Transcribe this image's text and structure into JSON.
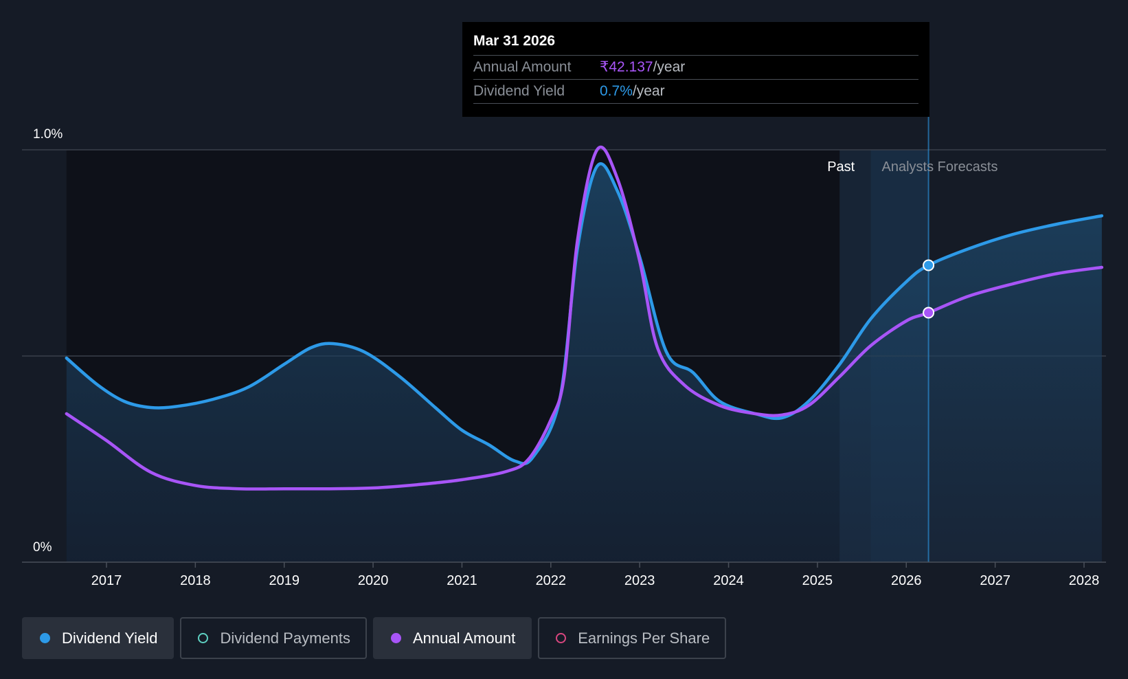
{
  "tooltip": {
    "date": "Mar 31 2026",
    "rows": [
      {
        "label": "Annual Amount",
        "value": "₹42.137",
        "unit": "/year",
        "color": "#a855f7"
      },
      {
        "label": "Dividend Yield",
        "value": "0.7%",
        "unit": "/year",
        "color": "#2d9ae8"
      }
    ]
  },
  "regions": {
    "past_label": "Past",
    "forecast_label": "Analysts Forecasts"
  },
  "legend": [
    {
      "label": "Dividend Yield",
      "color": "#2d9ae8",
      "active": true,
      "filled": true
    },
    {
      "label": "Dividend Payments",
      "color": "#5ed1c2",
      "active": false,
      "filled": false
    },
    {
      "label": "Annual Amount",
      "color": "#a855f7",
      "active": true,
      "filled": true
    },
    {
      "label": "Earnings Per Share",
      "color": "#d9467f",
      "active": false,
      "filled": false
    }
  ],
  "colors": {
    "background": "#151b26",
    "dividend_yield": "#2d9ae8",
    "annual_amount": "#a855f7",
    "gridline": "#3a404a"
  },
  "chart_data": {
    "type": "line",
    "y_tick_labels": [
      "0%",
      "1.0%"
    ],
    "ylim": [
      0,
      1.0
    ],
    "xlim": [
      2016.55,
      2028.2
    ],
    "x_tick_labels": [
      "2017",
      "2018",
      "2019",
      "2020",
      "2021",
      "2022",
      "2023",
      "2024",
      "2025",
      "2026",
      "2027",
      "2028"
    ],
    "x_ticks": [
      2017,
      2018,
      2019,
      2020,
      2021,
      2022,
      2023,
      2024,
      2025,
      2026,
      2027,
      2028
    ],
    "gridlines": [
      0.5,
      1.0
    ],
    "past_end": 2025.25,
    "forecast_start": 2025.6,
    "highlight": 2026.25,
    "series": [
      {
        "name": "Dividend Yield",
        "color": "#2d9ae8",
        "area": true,
        "points": [
          [
            2016.55,
            0.495
          ],
          [
            2016.9,
            0.43
          ],
          [
            2017.2,
            0.39
          ],
          [
            2017.5,
            0.375
          ],
          [
            2017.8,
            0.378
          ],
          [
            2018.2,
            0.395
          ],
          [
            2018.6,
            0.425
          ],
          [
            2019.0,
            0.48
          ],
          [
            2019.3,
            0.52
          ],
          [
            2019.55,
            0.53
          ],
          [
            2019.9,
            0.51
          ],
          [
            2020.3,
            0.45
          ],
          [
            2020.7,
            0.375
          ],
          [
            2021.0,
            0.32
          ],
          [
            2021.3,
            0.285
          ],
          [
            2021.6,
            0.245
          ],
          [
            2021.8,
            0.255
          ],
          [
            2022.1,
            0.395
          ],
          [
            2022.3,
            0.76
          ],
          [
            2022.52,
            0.96
          ],
          [
            2022.75,
            0.9
          ],
          [
            2023.0,
            0.74
          ],
          [
            2023.3,
            0.51
          ],
          [
            2023.6,
            0.46
          ],
          [
            2023.9,
            0.39
          ],
          [
            2024.3,
            0.36
          ],
          [
            2024.6,
            0.35
          ],
          [
            2024.9,
            0.39
          ],
          [
            2025.25,
            0.48
          ],
          [
            2025.6,
            0.59
          ],
          [
            2026.0,
            0.68
          ],
          [
            2026.25,
            0.72
          ],
          [
            2026.7,
            0.76
          ],
          [
            2027.2,
            0.795
          ],
          [
            2027.7,
            0.82
          ],
          [
            2028.2,
            0.84
          ]
        ]
      },
      {
        "name": "Annual Amount",
        "color": "#a855f7",
        "area": false,
        "points": [
          [
            2016.55,
            0.36
          ],
          [
            2017.0,
            0.295
          ],
          [
            2017.5,
            0.218
          ],
          [
            2018.0,
            0.186
          ],
          [
            2018.5,
            0.178
          ],
          [
            2019.0,
            0.178
          ],
          [
            2019.5,
            0.178
          ],
          [
            2020.0,
            0.18
          ],
          [
            2020.5,
            0.188
          ],
          [
            2021.0,
            0.2
          ],
          [
            2021.5,
            0.22
          ],
          [
            2021.75,
            0.25
          ],
          [
            2022.0,
            0.345
          ],
          [
            2022.15,
            0.45
          ],
          [
            2022.3,
            0.78
          ],
          [
            2022.52,
            1.0
          ],
          [
            2022.75,
            0.93
          ],
          [
            2023.0,
            0.73
          ],
          [
            2023.2,
            0.52
          ],
          [
            2023.5,
            0.43
          ],
          [
            2023.9,
            0.38
          ],
          [
            2024.3,
            0.36
          ],
          [
            2024.6,
            0.357
          ],
          [
            2024.9,
            0.38
          ],
          [
            2025.25,
            0.45
          ],
          [
            2025.6,
            0.525
          ],
          [
            2026.0,
            0.585
          ],
          [
            2026.25,
            0.605
          ],
          [
            2026.7,
            0.645
          ],
          [
            2027.2,
            0.675
          ],
          [
            2027.7,
            0.7
          ],
          [
            2028.2,
            0.715
          ]
        ]
      }
    ]
  }
}
